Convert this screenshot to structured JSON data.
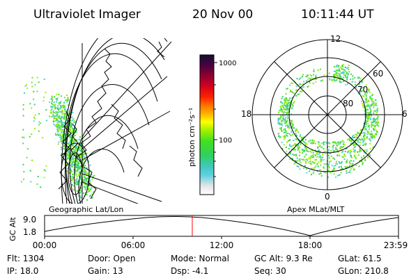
{
  "header": {
    "instrument": "Ultraviolet Imager",
    "date": "20 Nov 00",
    "time": "10:11:44 UT"
  },
  "colorbar": {
    "label": "photon cm⁻²s⁻¹",
    "ticks": [
      "1000",
      "100"
    ]
  },
  "panels": {
    "left_label": "Geographic Lat/Lon",
    "right_label": "Apex MLat/MLT"
  },
  "polar": {
    "mlt_labels": {
      "top": "12",
      "left": "18",
      "right": "6",
      "bottom": "0"
    },
    "lat_labels": [
      "80",
      "70",
      "60"
    ]
  },
  "altplot": {
    "ylabel": "GC Alt",
    "yticks": [
      "9.0",
      "1.8"
    ],
    "xticks": [
      "00:00",
      "06:00",
      "12:00",
      "18:00",
      "23:59"
    ],
    "marker_color": "#ff0000"
  },
  "info": {
    "flt": "Flt: 1304",
    "ip": "IP: 18.0",
    "door": "Door: Open",
    "gain": "Gain: 13",
    "mode": "Mode: Normal",
    "dsp": "Dsp: -4.1",
    "gcalt": "GC Alt: 9.3 Re",
    "seq": "Seq: 30",
    "glat": "GLat: 61.5",
    "glon": "GLon: 210.8"
  }
}
